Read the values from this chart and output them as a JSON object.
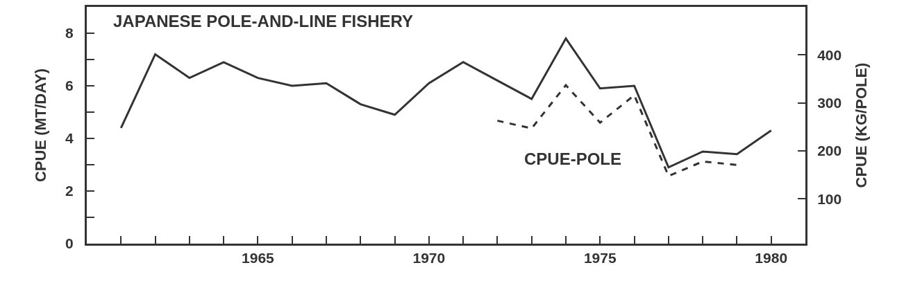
{
  "chart_data": {
    "type": "line",
    "title": "JAPANESE POLE-AND-LINE FISHERY",
    "ylabel": "CPUE (MT/DAY)",
    "y2label": "CPUE (KG/POLE)",
    "x": [
      1961,
      1962,
      1963,
      1964,
      1965,
      1966,
      1967,
      1968,
      1969,
      1970,
      1971,
      1972,
      1973,
      1974,
      1975,
      1976,
      1977,
      1978,
      1979,
      1980
    ],
    "series": [
      {
        "color": "#333333",
        "line_style": "solid",
        "values": [
          4.4,
          7.2,
          6.3,
          6.9,
          6.3,
          6.0,
          6.1,
          5.3,
          4.9,
          6.1,
          6.9,
          6.2,
          5.5,
          7.8,
          5.9,
          6.0,
          2.9,
          3.5,
          3.4,
          4.3
        ]
      },
      {
        "name": "CPUE-POLE",
        "color": "#333333",
        "line_style": "dashed",
        "axis": "y2",
        "x": [
          1972,
          1973,
          1974,
          1975,
          1976,
          1977,
          1978,
          1979
        ],
        "values": [
          263,
          247,
          337,
          259,
          316,
          148,
          178,
          171
        ]
      }
    ],
    "xlim": [
      1960,
      1981
    ],
    "xticks": [
      {
        "value": 1961,
        "label": null
      },
      {
        "value": 1962,
        "label": null
      },
      {
        "value": 1963,
        "label": null
      },
      {
        "value": 1964,
        "label": null
      },
      1965,
      {
        "value": 1966,
        "label": null
      },
      {
        "value": 1967,
        "label": null
      },
      {
        "value": 1968,
        "label": null
      },
      {
        "value": 1969,
        "label": null
      },
      1970,
      {
        "value": 1971,
        "label": null
      },
      {
        "value": 1972,
        "label": null
      },
      {
        "value": 1973,
        "label": null
      },
      {
        "value": 1974,
        "label": null
      },
      1975,
      {
        "value": 1976,
        "label": null
      },
      {
        "value": 1977,
        "label": null
      },
      {
        "value": 1978,
        "label": null
      },
      {
        "value": 1979,
        "label": null
      },
      1980
    ],
    "ylim": [
      0,
      9
    ],
    "yticks": [
      0,
      {
        "value": 1,
        "label": null
      },
      2,
      {
        "value": 3,
        "label": null
      },
      4,
      {
        "value": 5,
        "label": null
      },
      6,
      {
        "value": 7,
        "label": null
      },
      8
    ],
    "y2lim": [
      7,
      500
    ],
    "y2ticks": [
      100,
      200,
      300,
      400
    ],
    "legend": false,
    "marker": "none"
  }
}
